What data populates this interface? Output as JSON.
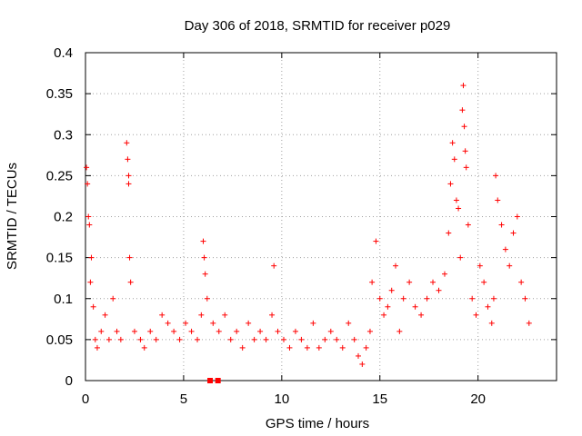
{
  "chart_data": {
    "type": "scatter",
    "title": "Day 306 of 2018, SRMTID for receiver p029",
    "xlabel": "GPS time / hours",
    "ylabel": "SRMTID / TECUs",
    "xlim": [
      0,
      24
    ],
    "ylim": [
      0,
      0.4
    ],
    "x_ticks": [
      0,
      5,
      10,
      15,
      20
    ],
    "x_tick_labels": [
      "0",
      "5",
      "10",
      "15",
      "20"
    ],
    "y_ticks": [
      0,
      0.05,
      0.1,
      0.15,
      0.2,
      0.25,
      0.3,
      0.35,
      0.4
    ],
    "y_tick_labels": [
      "0",
      "0.05",
      "0.1",
      "0.15",
      "0.2",
      "0.25",
      "0.3",
      "0.35",
      "0.4"
    ],
    "grid": true,
    "marker": "+",
    "color": "#ff0000",
    "series": [
      {
        "name": "SRMTID",
        "x": [
          0.05,
          0.1,
          0.15,
          0.2,
          0.25,
          0.3,
          0.4,
          0.5,
          0.6,
          0.8,
          1.0,
          1.2,
          1.4,
          1.6,
          1.8,
          2.1,
          2.15,
          2.2,
          2.2,
          2.25,
          2.3,
          2.5,
          2.8,
          3.0,
          3.3,
          3.6,
          3.9,
          4.2,
          4.5,
          4.8,
          5.1,
          5.4,
          5.7,
          5.9,
          6.0,
          6.05,
          6.1,
          6.2,
          6.5,
          6.8,
          7.1,
          7.4,
          7.7,
          8.0,
          8.3,
          8.6,
          8.9,
          9.2,
          9.5,
          9.6,
          9.8,
          10.1,
          10.4,
          10.7,
          11.0,
          11.3,
          11.6,
          11.9,
          12.2,
          12.5,
          12.8,
          13.1,
          13.4,
          13.7,
          13.9,
          14.1,
          14.3,
          14.5,
          14.6,
          14.8,
          15.0,
          15.2,
          15.4,
          15.6,
          15.8,
          16.0,
          16.2,
          16.5,
          16.8,
          17.1,
          17.4,
          17.7,
          18.0,
          18.3,
          18.5,
          18.6,
          18.7,
          18.8,
          18.9,
          19.0,
          19.1,
          19.2,
          19.25,
          19.3,
          19.35,
          19.4,
          19.5,
          19.7,
          19.9,
          20.1,
          20.3,
          20.5,
          20.7,
          20.8,
          20.9,
          21.0,
          21.2,
          21.4,
          21.6,
          21.8,
          22.0,
          22.2,
          22.4,
          22.6
        ],
        "y": [
          0.26,
          0.24,
          0.2,
          0.19,
          0.12,
          0.15,
          0.09,
          0.05,
          0.04,
          0.06,
          0.08,
          0.05,
          0.1,
          0.06,
          0.05,
          0.29,
          0.27,
          0.25,
          0.24,
          0.15,
          0.12,
          0.06,
          0.05,
          0.04,
          0.06,
          0.05,
          0.08,
          0.07,
          0.06,
          0.05,
          0.07,
          0.06,
          0.05,
          0.08,
          0.17,
          0.15,
          0.13,
          0.1,
          0.07,
          0.06,
          0.08,
          0.05,
          0.06,
          0.04,
          0.07,
          0.05,
          0.06,
          0.05,
          0.08,
          0.14,
          0.06,
          0.05,
          0.04,
          0.06,
          0.05,
          0.04,
          0.07,
          0.04,
          0.05,
          0.06,
          0.05,
          0.04,
          0.07,
          0.05,
          0.03,
          0.02,
          0.04,
          0.06,
          0.12,
          0.17,
          0.1,
          0.08,
          0.09,
          0.11,
          0.14,
          0.06,
          0.1,
          0.12,
          0.09,
          0.08,
          0.1,
          0.12,
          0.11,
          0.13,
          0.18,
          0.24,
          0.29,
          0.27,
          0.22,
          0.21,
          0.15,
          0.33,
          0.36,
          0.31,
          0.28,
          0.26,
          0.19,
          0.1,
          0.08,
          0.14,
          0.12,
          0.09,
          0.07,
          0.1,
          0.25,
          0.22,
          0.19,
          0.16,
          0.14,
          0.18,
          0.2,
          0.12,
          0.1,
          0.07
        ]
      }
    ],
    "no_data_markers_x": [
      6.35,
      6.75
    ]
  }
}
